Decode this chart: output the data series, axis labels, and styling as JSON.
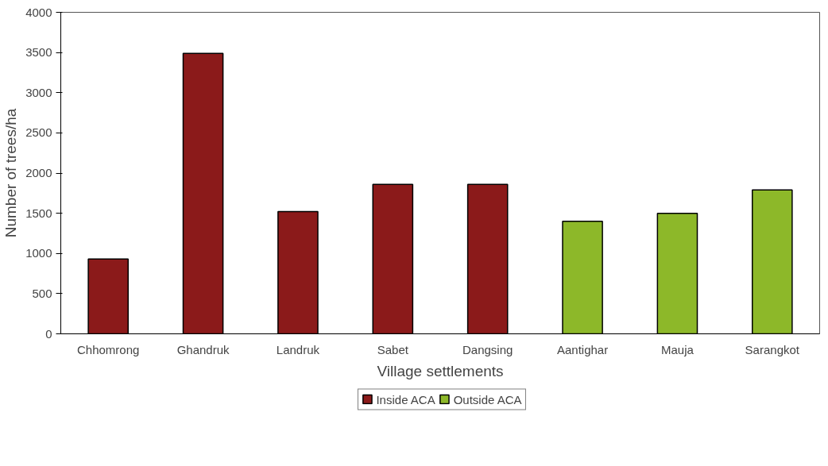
{
  "chart_data": {
    "type": "bar",
    "xlabel": "Village settlements",
    "ylabel": "Number of trees/ha",
    "categories": [
      "Chhomrong",
      "Ghandruk",
      "Landruk",
      "Sabet",
      "Dangsing",
      "Aantighar",
      "Mauja",
      "Sarangkot"
    ],
    "series": [
      {
        "name": "Inside ACA",
        "color": "#8b1a1a",
        "values": [
          930,
          3490,
          1520,
          1860,
          1860,
          null,
          null,
          null
        ]
      },
      {
        "name": "Outside ACA",
        "color": "#8db829",
        "values": [
          null,
          null,
          null,
          null,
          null,
          1400,
          1500,
          1790
        ]
      }
    ],
    "ylim": [
      0,
      4000
    ],
    "yticks": [
      0,
      500,
      1000,
      1500,
      2000,
      2500,
      3000,
      3500,
      4000
    ],
    "grid": false,
    "legend": "bottom"
  }
}
